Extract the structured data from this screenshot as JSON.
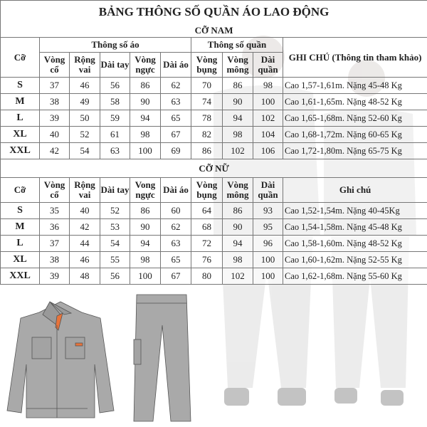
{
  "title": "BẢNG THÔNG SỐ QUẦN ÁO LAO ĐỘNG",
  "male": {
    "section": "CỠ NAM",
    "group_shirt": "Thông số áo",
    "group_pants": "Thông số quần",
    "headers": [
      "Cỡ",
      "Vòng cổ",
      "Rộng vai",
      "Dài tay",
      "Vòng ngực",
      "Dài áo",
      "Vòng bụng",
      "Vòng mông",
      "Dài quần",
      "GHI CHÚ (Thông tin tham khảo)"
    ],
    "rows": [
      [
        "S",
        "37",
        "46",
        "56",
        "86",
        "62",
        "70",
        "86",
        "98",
        "Cao 1,57-1,61m. Nặng 45-48 Kg"
      ],
      [
        "M",
        "38",
        "49",
        "58",
        "90",
        "63",
        "74",
        "90",
        "100",
        "Cao 1,61-1,65m. Nặng 48-52 Kg"
      ],
      [
        "L",
        "39",
        "50",
        "59",
        "94",
        "65",
        "78",
        "94",
        "102",
        "Cao 1,65-1,68m. Nặng 52-60 Kg"
      ],
      [
        "XL",
        "40",
        "52",
        "61",
        "98",
        "67",
        "82",
        "98",
        "104",
        "Cao 1,68-1,72m. Nặng 60-65 Kg"
      ],
      [
        "XXL",
        "42",
        "54",
        "63",
        "100",
        "69",
        "86",
        "102",
        "106",
        "Cao 1,72-1,80m. Nặng 65-75 Kg"
      ]
    ]
  },
  "female": {
    "section": "CỠ NỮ",
    "headers": [
      "Cỡ",
      "Vòng cổ",
      "Rộng vai",
      "Dài tay",
      "Vong ngực",
      "Dài áo",
      "Vòng bụng",
      "Vòng mông",
      "Dài quần",
      "Ghi chú"
    ],
    "rows": [
      [
        "S",
        "35",
        "40",
        "52",
        "86",
        "60",
        "64",
        "86",
        "93",
        "Cao 1,52-1,54m. Nặng 40-45Kg"
      ],
      [
        "M",
        "36",
        "42",
        "53",
        "90",
        "62",
        "68",
        "90",
        "95",
        "Cao 1,54-1,58m. Nặng 45-48 Kg"
      ],
      [
        "L",
        "37",
        "44",
        "54",
        "94",
        "63",
        "72",
        "94",
        "96",
        "Cao 1,58-1,60m. Nặng 48-52 Kg"
      ],
      [
        "XL",
        "38",
        "46",
        "55",
        "98",
        "65",
        "76",
        "98",
        "100",
        "Cao 1,60-1,62m. Nặng 52-55 Kg"
      ],
      [
        "XXL",
        "39",
        "48",
        "56",
        "100",
        "67",
        "80",
        "102",
        "100",
        "Cao 1,62-1,68m. Nặng 55-60 Kg"
      ]
    ]
  },
  "colors": {
    "garment": "#a9a9a9",
    "accent": "#e8733a",
    "border": "#777777"
  }
}
